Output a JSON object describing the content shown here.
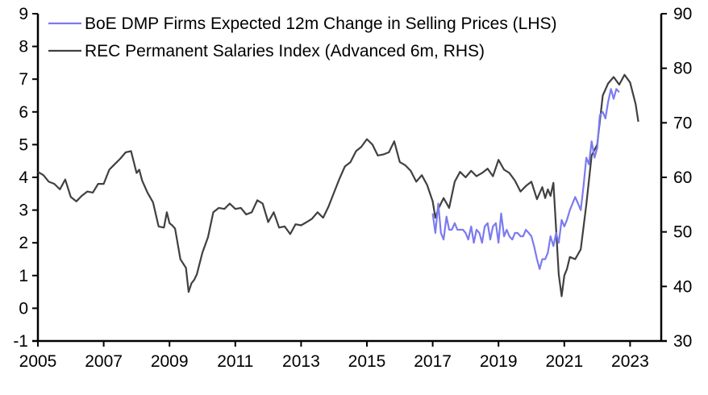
{
  "chart_data": {
    "type": "line",
    "title": "",
    "xlabel": "",
    "ylabel_left": "",
    "ylabel_right": "",
    "x_ticks": [
      "2005",
      "2007",
      "2009",
      "2011",
      "2013",
      "2015",
      "2017",
      "2019",
      "2021",
      "2023"
    ],
    "xlim": [
      2005,
      2024.3
    ],
    "ylim_left": [
      -1,
      9
    ],
    "y_ticks_left": [
      "-1",
      "0",
      "1",
      "2",
      "3",
      "4",
      "5",
      "6",
      "7",
      "8",
      "9"
    ],
    "ylim_right": [
      30,
      90
    ],
    "y_ticks_right": [
      "30",
      "40",
      "50",
      "60",
      "70",
      "80",
      "90"
    ],
    "grid": false,
    "legend_position": "top-left",
    "series": [
      {
        "name": "BoE DMP Firms Expected 12m Change in Selling Prices (LHS)",
        "axis": "left",
        "color": "#7b7bf0",
        "x": [
          2017.0,
          2017.08,
          2017.17,
          2017.25,
          2017.33,
          2017.42,
          2017.5,
          2017.58,
          2017.67,
          2017.75,
          2017.83,
          2017.92,
          2018.0,
          2018.08,
          2018.17,
          2018.25,
          2018.33,
          2018.42,
          2018.5,
          2018.58,
          2018.67,
          2018.75,
          2018.83,
          2018.92,
          2019.0,
          2019.08,
          2019.17,
          2019.25,
          2019.33,
          2019.42,
          2019.5,
          2019.58,
          2019.67,
          2019.75,
          2019.83,
          2019.92,
          2020.0,
          2020.08,
          2020.17,
          2020.25,
          2020.33,
          2020.42,
          2020.5,
          2020.58,
          2020.67,
          2020.75,
          2020.83,
          2020.92,
          2021.0,
          2021.08,
          2021.17,
          2021.25,
          2021.33,
          2021.42,
          2021.5,
          2021.58,
          2021.67,
          2021.75,
          2021.83,
          2021.92,
          2022.0,
          2022.08,
          2022.17,
          2022.25,
          2022.33,
          2022.42,
          2022.5,
          2022.58,
          2022.67
        ],
        "values": [
          2.9,
          2.3,
          3.2,
          2.3,
          2.1,
          2.8,
          2.4,
          2.4,
          2.6,
          2.4,
          2.4,
          2.4,
          2.3,
          2.1,
          2.5,
          2.0,
          2.4,
          2.3,
          2.0,
          2.5,
          2.6,
          2.1,
          2.5,
          2.6,
          2.0,
          2.9,
          2.2,
          2.4,
          2.2,
          2.1,
          2.3,
          2.3,
          2.2,
          2.2,
          2.4,
          2.3,
          2.2,
          1.9,
          1.5,
          1.2,
          1.5,
          1.5,
          1.7,
          2.2,
          1.9,
          2.3,
          2.0,
          2.7,
          2.5,
          2.7,
          3.0,
          3.2,
          3.4,
          3.2,
          3.0,
          3.7,
          4.6,
          4.4,
          5.1,
          4.6,
          4.9,
          5.9,
          6.0,
          5.8,
          6.3,
          6.7,
          6.4,
          6.7,
          6.6
        ],
        "values_note": "approximate, read from LHS axis"
      },
      {
        "name": "REC Permanent Salaries Index (Advanced 6m, RHS)",
        "axis": "right",
        "color": "#404040",
        "x": [
          2005.0,
          2005.17,
          2005.33,
          2005.5,
          2005.67,
          2005.83,
          2006.0,
          2006.17,
          2006.33,
          2006.5,
          2006.67,
          2006.83,
          2007.0,
          2007.17,
          2007.33,
          2007.5,
          2007.67,
          2007.83,
          2008.0,
          2008.08,
          2008.17,
          2008.33,
          2008.5,
          2008.67,
          2008.83,
          2008.92,
          2009.0,
          2009.08,
          2009.17,
          2009.33,
          2009.5,
          2009.58,
          2009.67,
          2009.75,
          2009.83,
          2010.0,
          2010.17,
          2010.33,
          2010.5,
          2010.67,
          2010.83,
          2011.0,
          2011.17,
          2011.33,
          2011.5,
          2011.67,
          2011.83,
          2012.0,
          2012.17,
          2012.33,
          2012.5,
          2012.67,
          2012.83,
          2013.0,
          2013.17,
          2013.33,
          2013.5,
          2013.67,
          2013.83,
          2014.0,
          2014.17,
          2014.33,
          2014.5,
          2014.67,
          2014.83,
          2015.0,
          2015.17,
          2015.33,
          2015.5,
          2015.67,
          2015.83,
          2016.0,
          2016.17,
          2016.33,
          2016.5,
          2016.67,
          2016.83,
          2017.0,
          2017.08,
          2017.17,
          2017.33,
          2017.5,
          2017.67,
          2017.83,
          2018.0,
          2018.17,
          2018.33,
          2018.5,
          2018.67,
          2018.83,
          2019.0,
          2019.17,
          2019.33,
          2019.5,
          2019.67,
          2019.83,
          2020.0,
          2020.17,
          2020.33,
          2020.42,
          2020.5,
          2020.58,
          2020.67,
          2020.75,
          2020.83,
          2020.92,
          2021.0,
          2021.08,
          2021.17,
          2021.33,
          2021.5,
          2021.67,
          2021.83,
          2022.0,
          2022.17,
          2022.33,
          2022.5,
          2022.67,
          2022.83,
          2023.0,
          2023.17,
          2023.25
        ],
        "values": [
          61.0,
          60.4,
          59.2,
          58.8,
          57.8,
          59.6,
          56.4,
          55.6,
          56.6,
          57.4,
          57.2,
          58.8,
          58.8,
          61.4,
          62.4,
          63.4,
          64.6,
          64.8,
          60.8,
          61.4,
          59.4,
          57.2,
          55.4,
          51.0,
          50.8,
          53.6,
          51.6,
          51.2,
          50.6,
          45.0,
          43.4,
          39.0,
          40.6,
          41.2,
          42.2,
          46.2,
          49.0,
          53.6,
          54.4,
          54.2,
          55.2,
          54.2,
          54.4,
          53.2,
          53.6,
          55.8,
          55.2,
          51.8,
          53.6,
          50.8,
          51.0,
          49.6,
          51.4,
          51.2,
          51.8,
          52.4,
          53.6,
          52.6,
          54.6,
          57.2,
          59.8,
          62.0,
          62.8,
          64.8,
          65.6,
          67.0,
          66.0,
          64.0,
          64.2,
          64.6,
          66.6,
          62.8,
          62.2,
          61.2,
          59.2,
          60.4,
          58.6,
          55.6,
          52.6,
          54.2,
          56.2,
          54.4,
          59.2,
          61.0,
          60.0,
          61.2,
          60.2,
          60.8,
          61.6,
          60.2,
          63.2,
          61.4,
          60.8,
          59.4,
          57.4,
          58.4,
          59.2,
          56.0,
          58.2,
          56.2,
          57.8,
          56.6,
          59.0,
          50.6,
          42.2,
          38.2,
          42.0,
          43.2,
          45.4,
          45.0,
          46.8,
          55.0,
          64.0,
          66.0,
          75.0,
          77.2,
          78.4,
          77.0,
          78.8,
          77.4,
          73.4,
          70.2
        ],
        "values_note": "approximate, read from RHS axis"
      }
    ]
  }
}
